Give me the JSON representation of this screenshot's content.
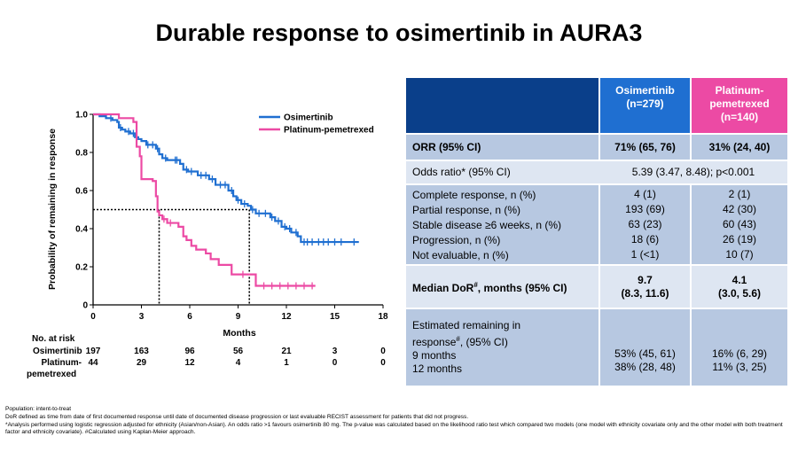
{
  "title": "Durable response to osimertinib in AURA3",
  "chart_data": {
    "type": "line",
    "subtype": "kaplan-meier",
    "ylabel": "Probability of remaining in response",
    "xlabel": "Months",
    "xlim": [
      0,
      18
    ],
    "ylim": [
      0,
      1
    ],
    "xticks": [
      "0",
      "3",
      "6",
      "9",
      "12",
      "15",
      "18"
    ],
    "yticks": [
      "0",
      "0.2",
      "0.4",
      "0.6",
      "0.8",
      "1.0"
    ],
    "legend_position": "top-right",
    "series": [
      {
        "name": "Osimertinib",
        "color": "#1f6fd1",
        "points": [
          [
            0,
            1.0
          ],
          [
            0.4,
            0.99
          ],
          [
            0.8,
            0.98
          ],
          [
            1.2,
            0.97
          ],
          [
            1.5,
            0.96
          ],
          [
            1.6,
            0.93
          ],
          [
            1.8,
            0.92
          ],
          [
            2.0,
            0.91
          ],
          [
            2.3,
            0.9
          ],
          [
            2.6,
            0.88
          ],
          [
            2.8,
            0.87
          ],
          [
            3.0,
            0.86
          ],
          [
            3.3,
            0.84
          ],
          [
            3.6,
            0.84
          ],
          [
            3.9,
            0.82
          ],
          [
            4.1,
            0.79
          ],
          [
            4.3,
            0.77
          ],
          [
            4.6,
            0.76
          ],
          [
            5.0,
            0.76
          ],
          [
            5.4,
            0.74
          ],
          [
            5.6,
            0.71
          ],
          [
            5.9,
            0.7
          ],
          [
            6.3,
            0.7
          ],
          [
            6.5,
            0.68
          ],
          [
            6.9,
            0.68
          ],
          [
            7.2,
            0.66
          ],
          [
            7.6,
            0.63
          ],
          [
            8.0,
            0.63
          ],
          [
            8.4,
            0.6
          ],
          [
            8.7,
            0.57
          ],
          [
            8.9,
            0.55
          ],
          [
            9.2,
            0.53
          ],
          [
            9.6,
            0.52
          ],
          [
            9.8,
            0.5
          ],
          [
            10.1,
            0.48
          ],
          [
            10.6,
            0.48
          ],
          [
            11.0,
            0.46
          ],
          [
            11.3,
            0.44
          ],
          [
            11.7,
            0.41
          ],
          [
            12.0,
            0.4
          ],
          [
            12.3,
            0.38
          ],
          [
            12.7,
            0.36
          ],
          [
            12.9,
            0.33
          ],
          [
            13.4,
            0.33
          ],
          [
            13.8,
            0.33
          ],
          [
            14.3,
            0.33
          ],
          [
            15.0,
            0.33
          ],
          [
            16.5,
            0.33
          ]
        ],
        "censor_x": [
          1.1,
          1.7,
          2.2,
          2.5,
          3.4,
          3.7,
          4.0,
          4.5,
          5.1,
          5.2,
          5.8,
          6.1,
          6.7,
          7.0,
          7.4,
          7.9,
          8.2,
          8.6,
          9.0,
          9.4,
          9.9,
          10.3,
          10.7,
          11.1,
          11.5,
          11.9,
          12.2,
          12.6,
          13.1,
          13.3,
          13.6,
          14.0,
          14.3,
          14.6,
          15.0,
          15.4,
          16.2
        ]
      },
      {
        "name": "Platinum-pemetrexed",
        "color": "#ec4aa4",
        "points": [
          [
            0,
            1.0
          ],
          [
            1.6,
            0.98
          ],
          [
            2.5,
            0.96
          ],
          [
            2.7,
            0.83
          ],
          [
            2.9,
            0.78
          ],
          [
            3.0,
            0.66
          ],
          [
            3.7,
            0.65
          ],
          [
            3.9,
            0.57
          ],
          [
            4.0,
            0.49
          ],
          [
            4.1,
            0.47
          ],
          [
            4.3,
            0.45
          ],
          [
            4.6,
            0.43
          ],
          [
            5.3,
            0.41
          ],
          [
            5.6,
            0.36
          ],
          [
            5.8,
            0.34
          ],
          [
            6.1,
            0.31
          ],
          [
            6.4,
            0.29
          ],
          [
            7.0,
            0.27
          ],
          [
            7.3,
            0.24
          ],
          [
            7.8,
            0.21
          ],
          [
            8.5,
            0.21
          ],
          [
            8.6,
            0.16
          ],
          [
            9.5,
            0.16
          ],
          [
            9.7,
            0.16
          ],
          [
            10.1,
            0.1
          ],
          [
            13.8,
            0.1
          ]
        ],
        "censor_x": [
          4.4,
          4.8,
          9.3,
          10.6,
          11.1,
          11.6,
          12.1,
          12.6,
          13.1,
          13.6
        ]
      }
    ],
    "median_lines": [
      {
        "value": 9.7,
        "y": 0.5
      },
      {
        "value": 4.1,
        "y": 0.5
      }
    ]
  },
  "at_risk": {
    "header": "No. at risk",
    "rows": [
      {
        "label": "Osimertinib",
        "values": [
          "197",
          "163",
          "96",
          "56",
          "21",
          "3",
          "0"
        ]
      },
      {
        "label_line1": "Platinum-",
        "label_line2": "pemetrexed",
        "values": [
          "44",
          "29",
          "12",
          "4",
          "1",
          "0",
          "0"
        ]
      }
    ]
  },
  "table": {
    "header": {
      "col1": "Osimertinib\n(n=279)",
      "col2": "Platinum-\npemetrexed\n(n=140)"
    },
    "orr": {
      "label": "ORR (95% CI)",
      "v1": "71% (65, 76)",
      "v2": "31% (24, 40)"
    },
    "odds": {
      "label": "Odds ratio* (95% CI)",
      "value": "5.39 (3.47, 8.48); p<0.001"
    },
    "responses": [
      {
        "label": "Complete response, n (%)",
        "v1": "4 (1)",
        "v2": "2 (1)"
      },
      {
        "label": "Partial response, n (%)",
        "v1": "193 (69)",
        "v2": "42 (30)"
      },
      {
        "label": "Stable disease ≥6 weeks, n (%)",
        "v1": "63 (23)",
        "v2": "60 (43)"
      },
      {
        "label": "Progression, n (%)",
        "v1": "18 (6)",
        "v2": "26 (19)"
      },
      {
        "label": "Not evaluable, n (%)",
        "v1": "1 (<1)",
        "v2": "10 (7)"
      }
    ],
    "median_dor": {
      "label_main": "Median DoR",
      "label_sup": "#",
      "label_rest": ", months (95% CI)",
      "v1a": "9.7",
      "v1b": "(8.3, 11.6)",
      "v2a": "4.1",
      "v2b": "(3.0, 5.6)"
    },
    "remaining": {
      "label_line1": "Estimated remaining in",
      "label_line2a": "response",
      "label_sup": "#",
      "label_line2b": ", (95% CI)",
      "rows": [
        {
          "label": "9 months",
          "v1": "53% (45, 61)",
          "v2": "16% (6, 29)"
        },
        {
          "label": "12 months",
          "v1": "38% (28, 48)",
          "v2": "11% (3, 25)"
        }
      ]
    }
  },
  "footnotes": [
    "Population: intent-to-treat",
    "DoR defined as time from date of first documented response until date of documented disease progression or last evaluable RECIST assessment for patients that did not progress.",
    "*Analysis performed using logistic regression adjusted for ethnicity (Asian/non-Asian). An odds ratio >1 favours osimertinib 80 mg. The p-value was calculated based on the likelihood ratio test which compared two models (one model with ethnicity covariate only and the other model with both treatment factor and ethnicity covariate). #Calculated using Kaplan-Meier approach."
  ]
}
